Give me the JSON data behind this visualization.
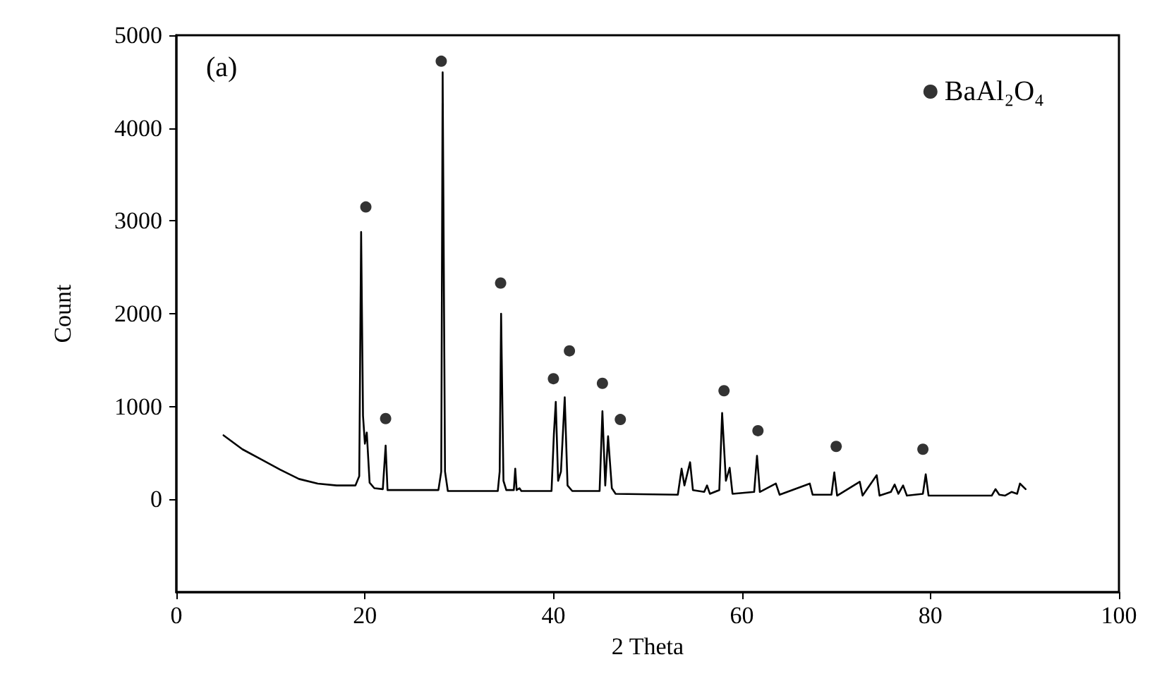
{
  "chart_data": {
    "type": "line",
    "xlabel": "2 Theta",
    "ylabel": "Count",
    "annotations": [
      "(a)"
    ],
    "xlim": [
      0,
      100
    ],
    "xticks": [
      0,
      20,
      40,
      60,
      80,
      100
    ],
    "ylim": [
      -1000,
      5000
    ],
    "yticks": [
      0,
      1000,
      2000,
      3000,
      4000,
      5000
    ],
    "grid": false,
    "legend": "top right",
    "line_style": "solid",
    "series": [
      {
        "color": "#000000",
        "marker": "none",
        "x": [
          5,
          7,
          9,
          11,
          13,
          15,
          17,
          19,
          19.4,
          19.6,
          19.8,
          20.0,
          20.2,
          20.5,
          21,
          21.9,
          22.2,
          22.4,
          27.8,
          28.1,
          28.25,
          28.5,
          28.8,
          34.1,
          34.3,
          34.45,
          34.7,
          35,
          35.8,
          35.95,
          36.1,
          36.4,
          36.6,
          39.8,
          40.05,
          40.25,
          40.5,
          40.8,
          41.2,
          41.5,
          42,
          44.9,
          45.2,
          45.5,
          45.8,
          46.2,
          46.6,
          53.2,
          53.6,
          53.9,
          54.5,
          54.8,
          56,
          56.3,
          56.6,
          57.6,
          57.9,
          58.3,
          58.7,
          59,
          61.3,
          61.6,
          61.9,
          63.6,
          64,
          67.2,
          67.5,
          69.5,
          69.8,
          70.1,
          72.5,
          72.8,
          74.3,
          74.6,
          75.8,
          76.2,
          76.6,
          77.1,
          77.5,
          79.2,
          79.5,
          79.8,
          86.5,
          86.9,
          87.3,
          87.9,
          88.6,
          89.2,
          89.5,
          90.1
        ],
        "values": [
          690,
          540,
          430,
          320,
          220,
          170,
          150,
          150,
          250,
          2880,
          900,
          600,
          720,
          180,
          120,
          110,
          580,
          100,
          100,
          300,
          4600,
          300,
          90,
          90,
          300,
          2000,
          200,
          100,
          100,
          330,
          100,
          120,
          90,
          90,
          700,
          1050,
          200,
          300,
          1100,
          150,
          90,
          90,
          950,
          150,
          680,
          120,
          60,
          50,
          330,
          150,
          400,
          100,
          80,
          150,
          60,
          100,
          930,
          200,
          340,
          60,
          80,
          470,
          80,
          170,
          50,
          170,
          50,
          50,
          290,
          40,
          190,
          40,
          260,
          40,
          80,
          160,
          60,
          150,
          40,
          60,
          270,
          40,
          40,
          110,
          50,
          40,
          80,
          60,
          170,
          110
        ]
      },
      {
        "type": "scatter",
        "name": "BaAl₂O₄",
        "color": "#000000",
        "marker": "circle",
        "x": [
          20.1,
          22.2,
          28.1,
          34.4,
          40.0,
          41.7,
          45.2,
          47.1,
          58.1,
          61.7,
          70.0,
          79.2
        ],
        "values": [
          3150,
          870,
          4720,
          2330,
          1300,
          1600,
          1250,
          860,
          1170,
          740,
          570,
          540
        ]
      }
    ]
  }
}
